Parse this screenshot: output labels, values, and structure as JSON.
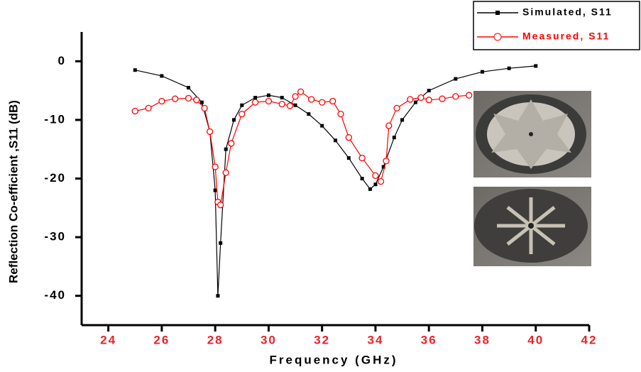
{
  "chart_data": {
    "type": "line",
    "x_label": "Frequency (GHz)",
    "y_label": "Reflection Co-efficient ,S11 (dB)",
    "xlim": [
      23,
      42
    ],
    "ylim": [
      -45,
      5
    ],
    "xticks": [
      24,
      26,
      28,
      30,
      32,
      34,
      36,
      38,
      40,
      42
    ],
    "yticks": [
      0,
      -10,
      -20,
      -30,
      -40
    ],
    "legend": "top-right",
    "series": [
      {
        "name": "Simulated, S11",
        "color": "#000000",
        "marker": "square",
        "x": [
          25,
          26,
          27,
          27.5,
          27.8,
          28,
          28.1,
          28.2,
          28.4,
          28.7,
          29,
          29.5,
          30,
          30.5,
          31,
          31.5,
          32,
          32.5,
          33,
          33.5,
          33.8,
          34,
          34.3,
          34.7,
          35,
          35.5,
          36,
          37,
          38,
          39,
          40
        ],
        "values": [
          -1.5,
          -2.5,
          -4.5,
          -7,
          -12,
          -22,
          -40,
          -31,
          -15,
          -10,
          -7.5,
          -6.2,
          -5.8,
          -6.2,
          -7.5,
          -9,
          -11,
          -13.5,
          -16.5,
          -20,
          -21.8,
          -21,
          -18,
          -13,
          -10,
          -7,
          -5,
          -3,
          -1.8,
          -1.2,
          -0.8
        ]
      },
      {
        "name": "Measured, S11",
        "color": "#ff0000",
        "marker": "circle",
        "x": [
          25,
          25.5,
          26,
          26.5,
          27,
          27.3,
          27.6,
          27.8,
          28,
          28.1,
          28.2,
          28.4,
          28.6,
          29,
          29.5,
          30,
          30.5,
          30.8,
          31,
          31.2,
          31.6,
          32,
          32.4,
          32.7,
          33,
          33.5,
          34,
          34.2,
          34.4,
          34.5,
          34.8,
          35.3,
          35.7,
          36,
          36.5,
          37,
          37.5
        ],
        "values": [
          -8.5,
          -8,
          -6.8,
          -6.4,
          -6.3,
          -6.6,
          -8,
          -12,
          -18,
          -24,
          -24.5,
          -19,
          -14,
          -9,
          -7,
          -6.8,
          -7.3,
          -7.6,
          -6,
          -5.2,
          -6.5,
          -7,
          -6.8,
          -9,
          -13,
          -16.5,
          -19.5,
          -20.5,
          -17,
          -11,
          -8,
          -6.5,
          -6.2,
          -6.6,
          -6.4,
          -6,
          -5.8
        ]
      }
    ]
  }
}
